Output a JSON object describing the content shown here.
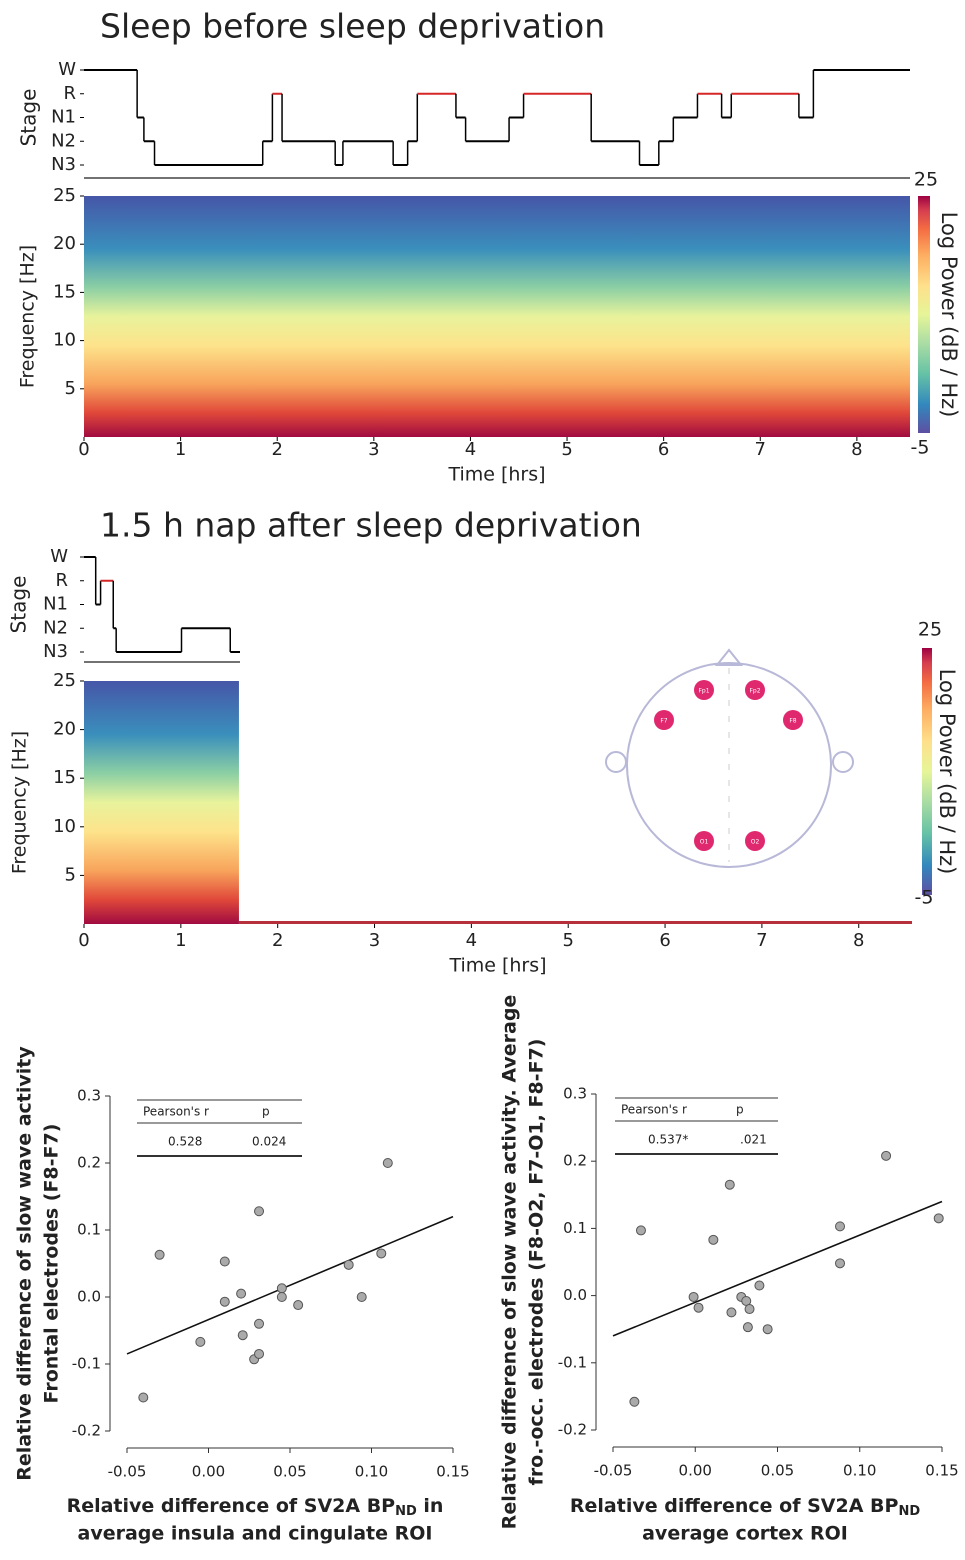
{
  "chart_data": [
    {
      "type": "hypnogram",
      "title": "Sleep before sleep deprivation",
      "ylabel": "Stage",
      "xlim": [
        0,
        8.55
      ],
      "ylim": [
        0,
        4
      ],
      "yticks": [
        {
          "value": 4,
          "label": "W"
        },
        {
          "value": 3,
          "label": "R"
        },
        {
          "value": 2,
          "label": "N1"
        },
        {
          "value": 1,
          "label": "N2"
        },
        {
          "value": 0,
          "label": "N3"
        }
      ],
      "color": "#000000",
      "rem_color": "#d62728",
      "x": [
        0,
        0.55,
        0.62,
        0.73,
        1.85,
        1.95,
        2.05,
        2.6,
        2.68,
        3.2,
        3.35,
        3.45,
        3.85,
        3.95,
        4.4,
        4.55,
        5.25,
        5.75,
        5.95,
        6.1,
        6.35,
        6.6,
        6.7,
        7.4,
        7.55
      ],
      "values": [
        4,
        2,
        1,
        0,
        1,
        3,
        1,
        0,
        1,
        0,
        1,
        3,
        2,
        1,
        2,
        3,
        1,
        0,
        1,
        2,
        3,
        2,
        3,
        2,
        4
      ]
    },
    {
      "type": "spectrogram",
      "xlabel": "Time [hrs]",
      "ylabel": "Frequency [Hz]",
      "xlim": [
        0,
        8.55
      ],
      "xticks": [
        0,
        1,
        2,
        3,
        4,
        5,
        6,
        7,
        8
      ],
      "ylim": [
        0,
        25
      ],
      "yticks": [
        5,
        10,
        15,
        20,
        25
      ],
      "data_extent": [
        0,
        8.55
      ],
      "colorbar_label": "Log Power (dB / Hz)",
      "clim": [
        -5,
        25
      ]
    },
    {
      "type": "hypnogram",
      "title": "1.5 h nap after sleep deprivation",
      "ylabel": "Stage",
      "xlim": [
        0,
        1.6
      ],
      "ylim": [
        0,
        4
      ],
      "yticks": [
        {
          "value": 4,
          "label": "W"
        },
        {
          "value": 3,
          "label": "R"
        },
        {
          "value": 2,
          "label": "N1"
        },
        {
          "value": 1,
          "label": "N2"
        },
        {
          "value": 0,
          "label": "N3"
        }
      ],
      "color": "#000000",
      "rem_color": "#d62728",
      "x": [
        0,
        0.12,
        0.17,
        0.3,
        0.33,
        1.0,
        1.5
      ],
      "values": [
        4,
        2,
        3,
        1,
        0,
        1,
        0
      ]
    },
    {
      "type": "spectrogram",
      "xlabel": "Time [hrs]",
      "ylabel": "Frequency [Hz]",
      "xlim": [
        0,
        8.55
      ],
      "xticks": [
        0,
        1,
        2,
        3,
        4,
        5,
        6,
        7,
        8
      ],
      "ylim": [
        0,
        25
      ],
      "yticks": [
        5,
        10,
        15,
        20,
        25
      ],
      "data_extent": [
        0,
        1.6
      ],
      "colorbar_label": "Log Power (dB / Hz)",
      "clim": [
        -5,
        25
      ]
    },
    {
      "type": "scatter",
      "ylabel": [
        "Relative difference of slow wave activity",
        "Frontal electrodes (F8-F7)"
      ],
      "xlabel": {
        "text": "Relative difference of SV2A BP",
        "sub": "ND",
        "tail": " in",
        "line2": "average insula and cingulate ROI"
      },
      "xlim": [
        -0.05,
        0.15
      ],
      "ylim": [
        -0.2,
        0.3
      ],
      "xticks": [
        -0.05,
        {
          "value": 0,
          "label": "0.00"
        },
        0.05,
        {
          "value": 0.1,
          "label": "0.10"
        },
        0.15
      ],
      "yticks": [
        -0.2,
        -0.1,
        {
          "value": 0,
          "label": "0.0"
        },
        0.1,
        0.2,
        0.3
      ],
      "color": "#aaaaaa",
      "x": [
        -0.04,
        -0.03,
        -0.005,
        0.01,
        0.01,
        0.02,
        0.021,
        0.028,
        0.031,
        0.031,
        0.031,
        0.045,
        0.045,
        0.055,
        0.086,
        0.094,
        0.106,
        0.11
      ],
      "values": [
        -0.15,
        0.063,
        -0.067,
        -0.007,
        0.053,
        0.005,
        -0.057,
        -0.093,
        0.128,
        -0.04,
        -0.085,
        0.013,
        0.0,
        -0.012,
        0.048,
        0.0,
        0.065,
        0.2
      ],
      "fit_x": [
        -0.05,
        0.15
      ],
      "fit_values": [
        -0.085,
        0.12
      ],
      "stats_table": {
        "header": [
          "Pearson's r",
          "p"
        ],
        "row": [
          "0.528",
          "0.024"
        ]
      }
    },
    {
      "type": "scatter",
      "ylabel": [
        "Relative difference of slow wave activity. Average",
        "fro.-occ. electrodes (F8-O2, F7-O1, F8-F7)"
      ],
      "xlabel": {
        "text": "Relative difference of SV2A BP",
        "sub": "ND",
        "line2": "average cortex ROI"
      },
      "xlim": [
        -0.05,
        0.15
      ],
      "ylim": [
        -0.2,
        0.3
      ],
      "xticks": [
        -0.05,
        {
          "value": 0,
          "label": "0.00"
        },
        0.05,
        {
          "value": 0.1,
          "label": "0.10"
        },
        0.15
      ],
      "yticks": [
        -0.2,
        -0.1,
        {
          "value": 0,
          "label": "0.0"
        },
        0.1,
        0.2,
        0.3
      ],
      "color": "#aaaaaa",
      "x": [
        -0.037,
        -0.033,
        -0.001,
        0.002,
        0.011,
        0.021,
        0.022,
        0.028,
        0.031,
        0.033,
        0.032,
        0.039,
        0.044,
        0.088,
        0.088,
        0.116,
        0.148
      ],
      "values": [
        -0.158,
        0.097,
        -0.002,
        -0.018,
        0.083,
        0.165,
        -0.025,
        -0.002,
        -0.008,
        -0.02,
        -0.047,
        0.015,
        -0.05,
        0.103,
        0.048,
        0.208,
        0.115
      ],
      "fit_x": [
        -0.05,
        0.15
      ],
      "fit_values": [
        -0.06,
        0.14
      ],
      "stats_table": {
        "header": [
          "Pearson's r",
          "p"
        ],
        "row": [
          "0.537*",
          ".021"
        ]
      }
    }
  ],
  "head_diagram": {
    "electrodes": [
      "Fp1",
      "Fp2",
      "F7",
      "F8",
      "O1",
      "O2"
    ]
  }
}
